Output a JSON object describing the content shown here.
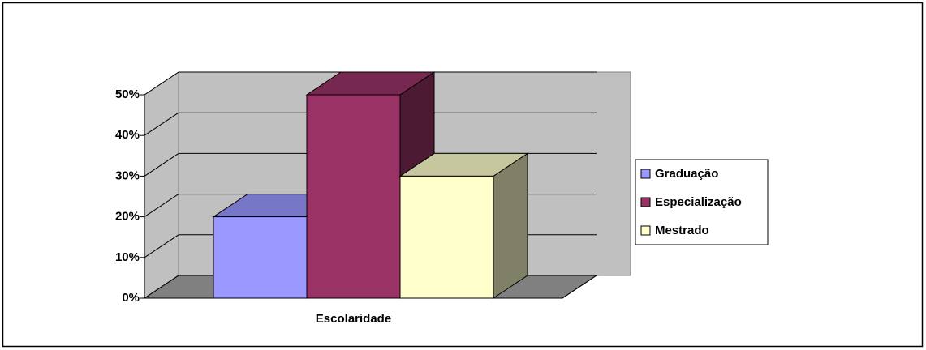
{
  "chart_data": {
    "type": "bar3d",
    "categories": [
      "Escolaridade"
    ],
    "series": [
      {
        "name": "Graduação",
        "color": "#9999ff",
        "values": [
          20
        ]
      },
      {
        "name": "Especialização",
        "color": "#993366",
        "values": [
          50
        ]
      },
      {
        "name": "Mestrado",
        "color": "#ffffcc",
        "values": [
          30
        ]
      }
    ],
    "ylim": [
      0,
      50
    ],
    "yticks": [
      {
        "value": 0,
        "label": "0%"
      },
      {
        "value": 10,
        "label": "10%"
      },
      {
        "value": 20,
        "label": "20%"
      },
      {
        "value": 30,
        "label": "30%"
      },
      {
        "value": 40,
        "label": "40%"
      },
      {
        "value": 50,
        "label": "50%"
      }
    ],
    "grid": true,
    "legend": "right"
  }
}
